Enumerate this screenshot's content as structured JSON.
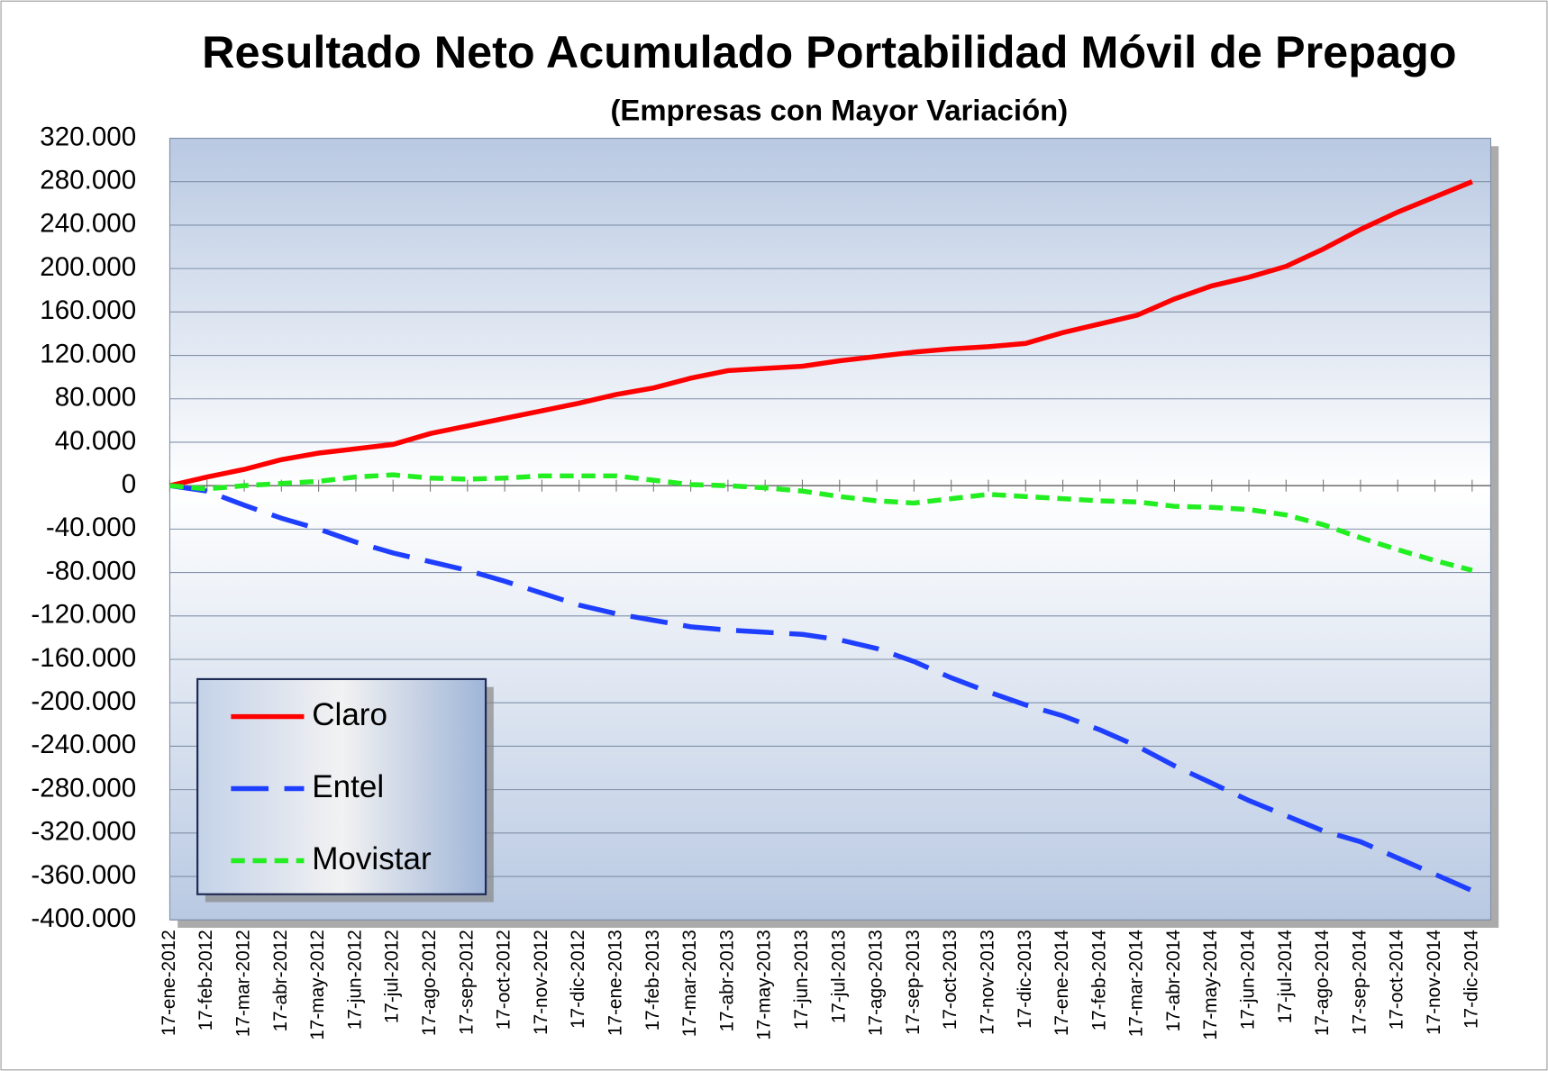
{
  "chart_data": {
    "type": "line",
    "title": "Resultado Neto Acumulado Portabilidad Móvil de Prepago",
    "subtitle": "(Empresas con Mayor Variación)",
    "categories": [
      "17-ene-2012",
      "17-feb-2012",
      "17-mar-2012",
      "17-abr-2012",
      "17-may-2012",
      "17-jun-2012",
      "17-jul-2012",
      "17-ago-2012",
      "17-sep-2012",
      "17-oct-2012",
      "17-nov-2012",
      "17-dic-2012",
      "17-ene-2013",
      "17-feb-2013",
      "17-mar-2013",
      "17-abr-2013",
      "17-may-2013",
      "17-jun-2013",
      "17-jul-2013",
      "17-ago-2013",
      "17-sep-2013",
      "17-oct-2013",
      "17-nov-2013",
      "17-dic-2013",
      "17-ene-2014",
      "17-feb-2014",
      "17-mar-2014",
      "17-abr-2014",
      "17-may-2014",
      "17-jun-2014",
      "17-jul-2014",
      "17-ago-2014",
      "17-sep-2014",
      "17-oct-2014",
      "17-nov-2014",
      "17-dic-2014"
    ],
    "series": [
      {
        "name": "Claro",
        "color": "#ff0000",
        "dash": "none",
        "values": [
          0,
          8000,
          15000,
          24000,
          30000,
          34000,
          38000,
          48000,
          55000,
          62000,
          69000,
          76000,
          84000,
          90000,
          99000,
          106000,
          108000,
          110000,
          115000,
          119000,
          123000,
          126000,
          128000,
          131000,
          141000,
          149000,
          157000,
          172000,
          184000,
          192000,
          202000,
          218000,
          236000,
          252000,
          266000,
          280000
        ]
      },
      {
        "name": "Entel",
        "color": "#1f3fff",
        "dash": "38 16",
        "values": [
          0,
          -5000,
          -18000,
          -30000,
          -40000,
          -52000,
          -62000,
          -70000,
          -78000,
          -88000,
          -99000,
          -110000,
          -118000,
          -124000,
          -130000,
          -133000,
          -135000,
          -137000,
          -142000,
          -150000,
          -162000,
          -177000,
          -190000,
          -202000,
          -212000,
          -225000,
          -240000,
          -258000,
          -274000,
          -290000,
          -304000,
          -318000,
          -328000,
          -343000,
          -358000,
          -373000
        ]
      },
      {
        "name": "Movistar",
        "color": "#22ee22",
        "dash": "14 8",
        "values": [
          0,
          -3000,
          0,
          2000,
          4000,
          8000,
          10000,
          7000,
          6000,
          7000,
          9000,
          9000,
          9000,
          5000,
          1000,
          0,
          -2000,
          -5000,
          -10000,
          -14000,
          -16000,
          -12000,
          -8000,
          -10000,
          -12000,
          -14000,
          -15000,
          -19000,
          -20000,
          -22000,
          -27000,
          -36000,
          -48000,
          -59000,
          -69000,
          -78000
        ]
      }
    ],
    "ylim": [
      -400000,
      320000
    ],
    "yticks": [
      {
        "value": -400000,
        "label": "-400.000"
      },
      {
        "value": -360000,
        "label": "-360.000"
      },
      {
        "value": -320000,
        "label": "-320.000"
      },
      {
        "value": -280000,
        "label": "-280.000"
      },
      {
        "value": -240000,
        "label": "-240.000"
      },
      {
        "value": -200000,
        "label": "-200.000"
      },
      {
        "value": -160000,
        "label": "-160.000"
      },
      {
        "value": -120000,
        "label": "-120.000"
      },
      {
        "value": -80000,
        "label": "-80.000"
      },
      {
        "value": -40000,
        "label": "-40.000"
      },
      0,
      {
        "value": 40000,
        "label": "40.000"
      },
      {
        "value": 80000,
        "label": "80.000"
      },
      {
        "value": 120000,
        "label": "120.000"
      },
      {
        "value": 160000,
        "label": "160.000"
      },
      {
        "value": 200000,
        "label": "200.000"
      },
      {
        "value": 240000,
        "label": "240.000"
      },
      {
        "value": 280000,
        "label": "280.000"
      },
      {
        "value": 320000,
        "label": "320.000"
      }
    ],
    "grid": true,
    "legend": "lower left"
  }
}
